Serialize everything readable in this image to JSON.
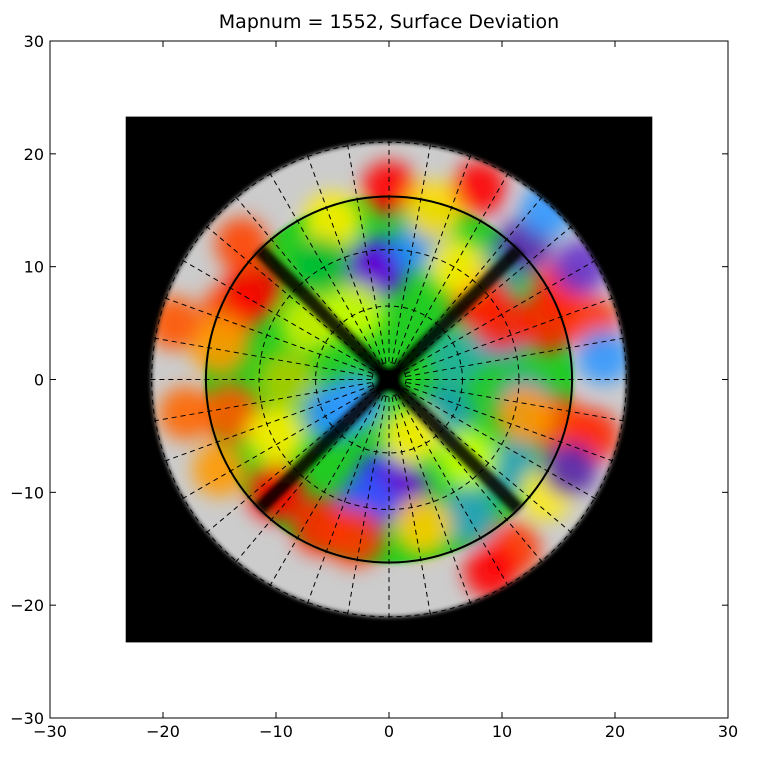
{
  "chart_data": {
    "type": "heatmap",
    "title": "Mapnum = 1552, Surface Deviation",
    "xlabel": "",
    "ylabel": "",
    "xlim": [
      -30,
      30
    ],
    "ylim": [
      -30,
      30
    ],
    "xticks": [
      -30,
      -20,
      -10,
      0,
      10,
      20,
      30
    ],
    "yticks": [
      -30,
      -20,
      -10,
      0,
      10,
      20,
      30
    ],
    "xtick_labels": [
      "−30",
      "−20",
      "−10",
      "0",
      "10",
      "20",
      "30"
    ],
    "ytick_labels": [
      "−30",
      "−20",
      "−10",
      "0",
      "10",
      "20",
      "30"
    ],
    "grid": false,
    "legend": "none",
    "image_extent": [
      -23.3,
      23.3,
      -23.3,
      23.3
    ],
    "background_color": "#000000",
    "outer_region_color": "#cccccc",
    "dish_radius": 21,
    "main_circle_radius": 16.2,
    "inner_hole_halfwidth": 1.2,
    "dashed_ring_radii": [
      1.5,
      6.5,
      11.5,
      16.2,
      21
    ],
    "radial_spoke_count": 36,
    "diagonal_gap_angles_deg": [
      45,
      135,
      225,
      315
    ],
    "colormap": [
      "#7f007f",
      "#0000ff",
      "#3399ff",
      "#00cc00",
      "#ffff00",
      "#ff0000"
    ],
    "blobs": [
      {
        "x": -1,
        "y": 10,
        "c": "#2222ff"
      },
      {
        "x": -2,
        "y": 9,
        "c": "#6a00cc"
      },
      {
        "x": -0.5,
        "y": -9,
        "c": "#2222ff"
      },
      {
        "x": 1,
        "y": -10,
        "c": "#6a00cc"
      },
      {
        "x": -2,
        "y": -11,
        "c": "#3355ff"
      },
      {
        "x": -5,
        "y": -3,
        "c": "#1f8fff"
      },
      {
        "x": -3,
        "y": -2,
        "c": "#3399ff"
      },
      {
        "x": 5,
        "y": -3,
        "c": "#1aa0b0"
      },
      {
        "x": 6,
        "y": 2,
        "c": "#22b0a0"
      },
      {
        "x": 10,
        "y": 4,
        "c": "#20a0e0"
      },
      {
        "x": 12,
        "y": -2,
        "c": "#20a0e0"
      },
      {
        "x": 11,
        "y": -8,
        "c": "#2aa0c0"
      },
      {
        "x": 7,
        "y": -12,
        "c": "#2aa0c0"
      },
      {
        "x": 3,
        "y": 12,
        "c": "#1f8fff"
      },
      {
        "x": 10,
        "y": 10,
        "c": "#30a0a0"
      },
      {
        "x": -9,
        "y": 0,
        "c": "#aacc00"
      },
      {
        "x": -7,
        "y": 5,
        "c": "#ccee00"
      },
      {
        "x": -14,
        "y": 6,
        "c": "#ff4400"
      },
      {
        "x": -12,
        "y": 8,
        "c": "#ff0000"
      },
      {
        "x": -15,
        "y": 3,
        "c": "#ff9900"
      },
      {
        "x": -14,
        "y": -3,
        "c": "#ff5500"
      },
      {
        "x": -10,
        "y": -10,
        "c": "#ff0000"
      },
      {
        "x": -6,
        "y": -13,
        "c": "#ff2200"
      },
      {
        "x": -3,
        "y": -14,
        "c": "#ff3300"
      },
      {
        "x": 3,
        "y": -13,
        "c": "#ffcc00"
      },
      {
        "x": 8,
        "y": 7,
        "c": "#ff0000"
      },
      {
        "x": 10,
        "y": 5,
        "c": "#ff2200"
      },
      {
        "x": 14,
        "y": 5,
        "c": "#ff2200"
      },
      {
        "x": 15,
        "y": -4,
        "c": "#ff4400"
      },
      {
        "x": 12,
        "y": -3,
        "c": "#ff9900"
      },
      {
        "x": 0,
        "y": 17,
        "c": "#ff0000"
      },
      {
        "x": 4,
        "y": 15,
        "c": "#ffdd00"
      },
      {
        "x": -5,
        "y": 14,
        "c": "#ffee00"
      },
      {
        "x": -6,
        "y": 10,
        "c": "#00bb33"
      },
      {
        "x": -10,
        "y": -5,
        "c": "#ffee00"
      },
      {
        "x": 2,
        "y": -5,
        "c": "#ffee00"
      },
      {
        "x": 14,
        "y": -10,
        "c": "#ffee00"
      },
      {
        "x": 12,
        "y": 12,
        "c": "#5522aa"
      },
      {
        "x": 15,
        "y": 8,
        "c": "#ff2200"
      },
      {
        "x": 18,
        "y": 5,
        "c": "#ff3300"
      },
      {
        "x": 17,
        "y": 10,
        "c": "#6633cc"
      },
      {
        "x": 19,
        "y": 2,
        "c": "#3399ff"
      },
      {
        "x": 18,
        "y": -5,
        "c": "#ff2200"
      },
      {
        "x": 16,
        "y": -8,
        "c": "#5522aa"
      },
      {
        "x": 8,
        "y": 17,
        "c": "#ff0000"
      },
      {
        "x": 14,
        "y": 15,
        "c": "#3399ff"
      },
      {
        "x": -19,
        "y": 5,
        "c": "#ff5500"
      },
      {
        "x": -18,
        "y": -3,
        "c": "#ff6600"
      },
      {
        "x": -15,
        "y": -8,
        "c": "#ff9900"
      },
      {
        "x": 11,
        "y": -15,
        "c": "#ff3300"
      },
      {
        "x": 9,
        "y": -17,
        "c": "#ff0000"
      },
      {
        "x": -13,
        "y": 12,
        "c": "#ff4400"
      },
      {
        "x": 6,
        "y": 10,
        "c": "#ffee00"
      },
      {
        "x": -3,
        "y": 6,
        "c": "#ccff00"
      },
      {
        "x": 7,
        "y": -7,
        "c": "#ccff00"
      }
    ]
  }
}
